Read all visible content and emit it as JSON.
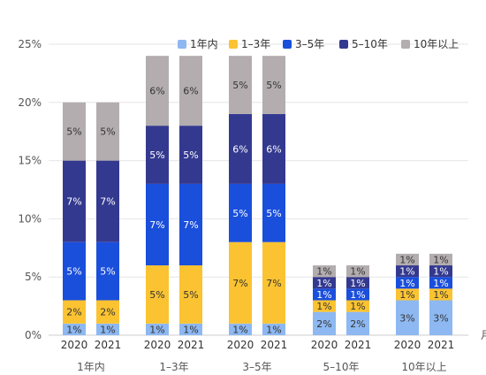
{
  "chart_data": {
    "type": "bar",
    "stacked": true,
    "unit_suffix": "%",
    "ylim": [
      0,
      25
    ],
    "yticks": [
      "0%",
      "5%",
      "10%",
      "15%",
      "20%",
      "25%"
    ],
    "grid": true,
    "legend_position": "top-right",
    "years": [
      "2020",
      "2021"
    ],
    "groups": [
      "1年内",
      "1–3年",
      "3–5年",
      "5–10年",
      "10年以上"
    ],
    "axis_end_label": "月",
    "colors": {
      "1年内": "#8db8f2",
      "1–3年": "#fbc331",
      "3–5年": "#1a4fdc",
      "5–10年": "#343990",
      "10年以上": "#b3adaf"
    },
    "series": [
      {
        "name": "1年内",
        "values": [
          1,
          1,
          1,
          1,
          1,
          1,
          2,
          2,
          3,
          3
        ]
      },
      {
        "name": "1–3年",
        "values": [
          2,
          2,
          5,
          5,
          7,
          7,
          1,
          1,
          1,
          1
        ]
      },
      {
        "name": "3–5年",
        "values": [
          5,
          5,
          7,
          7,
          5,
          5,
          1,
          1,
          1,
          1
        ]
      },
      {
        "name": "5–10年",
        "values": [
          7,
          7,
          5,
          5,
          6,
          6,
          1,
          1,
          1,
          1
        ]
      },
      {
        "name": "10年以上",
        "values": [
          5,
          5,
          6,
          6,
          5,
          5,
          1,
          1,
          1,
          1
        ]
      }
    ]
  }
}
